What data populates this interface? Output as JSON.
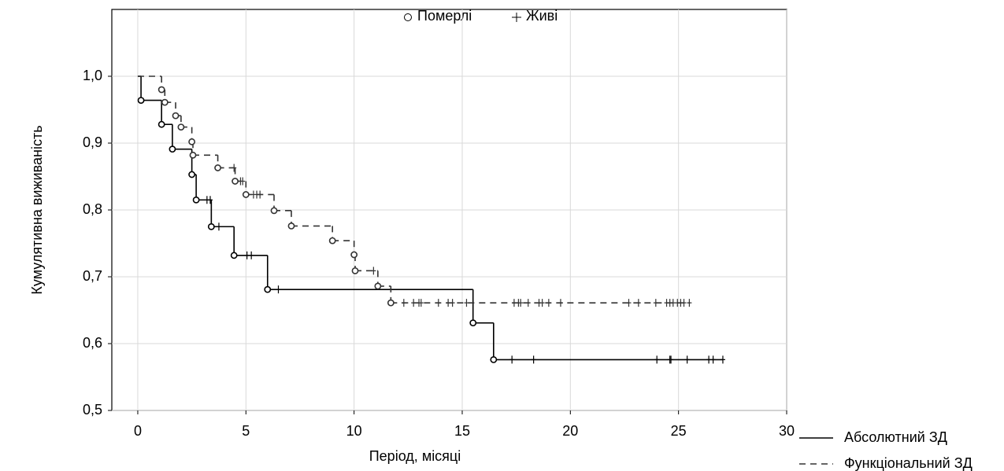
{
  "chart_data": {
    "type": "step",
    "xlabel": "Період, місяці",
    "ylabel": "Кумулятивна виживаність",
    "marker_legend": {
      "deaths": "Померлі",
      "censored": "Живі"
    },
    "xlim": [
      -1.2,
      30
    ],
    "xticks": [
      0,
      5,
      10,
      15,
      20,
      25,
      30
    ],
    "ylim": [
      0.5,
      1.1
    ],
    "yticks": [
      {
        "value": 0.5,
        "label": "0,5"
      },
      {
        "value": 0.6,
        "label": "0,6"
      },
      {
        "value": 0.7,
        "label": "0,7"
      },
      {
        "value": 0.8,
        "label": "0,8"
      },
      {
        "value": 0.9,
        "label": "0,9"
      },
      {
        "value": 1.0,
        "label": "1,0"
      }
    ],
    "grid": true,
    "series": [
      {
        "name": "Абсолютний ЗД",
        "color": "#000000",
        "dashed": false,
        "x": [
          0,
          0.15,
          1.1,
          1.6,
          2.5,
          2.7,
          3.4,
          4.45,
          6.0,
          15.5,
          16.45
        ],
        "values": [
          1.0,
          0.964,
          0.928,
          0.891,
          0.853,
          0.815,
          0.775,
          0.732,
          0.681,
          0.631,
          0.576
        ],
        "censored": {
          "x": [
            3.2,
            3.35,
            3.75,
            5.05,
            5.25,
            6.5,
            17.3,
            18.3,
            24.0,
            24.6,
            24.65,
            25.4,
            26.4,
            26.6,
            27.05
          ],
          "values": [
            0.815,
            0.815,
            0.775,
            0.732,
            0.732,
            0.681,
            0.576,
            0.576,
            0.576,
            0.576,
            0.576,
            0.576,
            0.576,
            0.576,
            0.576
          ]
        }
      },
      {
        "name": "Функціональний ЗД",
        "color": "#333333",
        "dashed": true,
        "x": [
          0,
          1.1,
          1.25,
          1.75,
          2.0,
          2.5,
          2.55,
          3.7,
          4.5,
          5.0,
          6.3,
          7.1,
          9.0,
          10.0,
          10.05,
          11.1,
          11.7
        ],
        "values": [
          1.0,
          0.98,
          0.961,
          0.941,
          0.924,
          0.902,
          0.882,
          0.863,
          0.843,
          0.823,
          0.799,
          0.776,
          0.754,
          0.733,
          0.709,
          0.686,
          0.661
        ],
        "censored": {
          "x": [
            4.45,
            4.75,
            4.85,
            5.35,
            5.5,
            5.65,
            10.9,
            12.3,
            12.75,
            13.0,
            13.1,
            13.9,
            14.35,
            14.55,
            15.2,
            17.4,
            17.6,
            17.7,
            18.05,
            18.55,
            18.7,
            19.0,
            19.55,
            22.7,
            23.15,
            23.95,
            24.45,
            24.6,
            24.75,
            24.95,
            25.1,
            25.25,
            25.5
          ],
          "values": [
            0.863,
            0.843,
            0.843,
            0.823,
            0.823,
            0.823,
            0.709,
            0.661,
            0.661,
            0.661,
            0.661,
            0.661,
            0.661,
            0.661,
            0.661,
            0.661,
            0.661,
            0.661,
            0.661,
            0.661,
            0.661,
            0.661,
            0.661,
            0.661,
            0.661,
            0.661,
            0.661,
            0.661,
            0.661,
            0.661,
            0.661,
            0.661,
            0.661
          ]
        }
      }
    ]
  }
}
